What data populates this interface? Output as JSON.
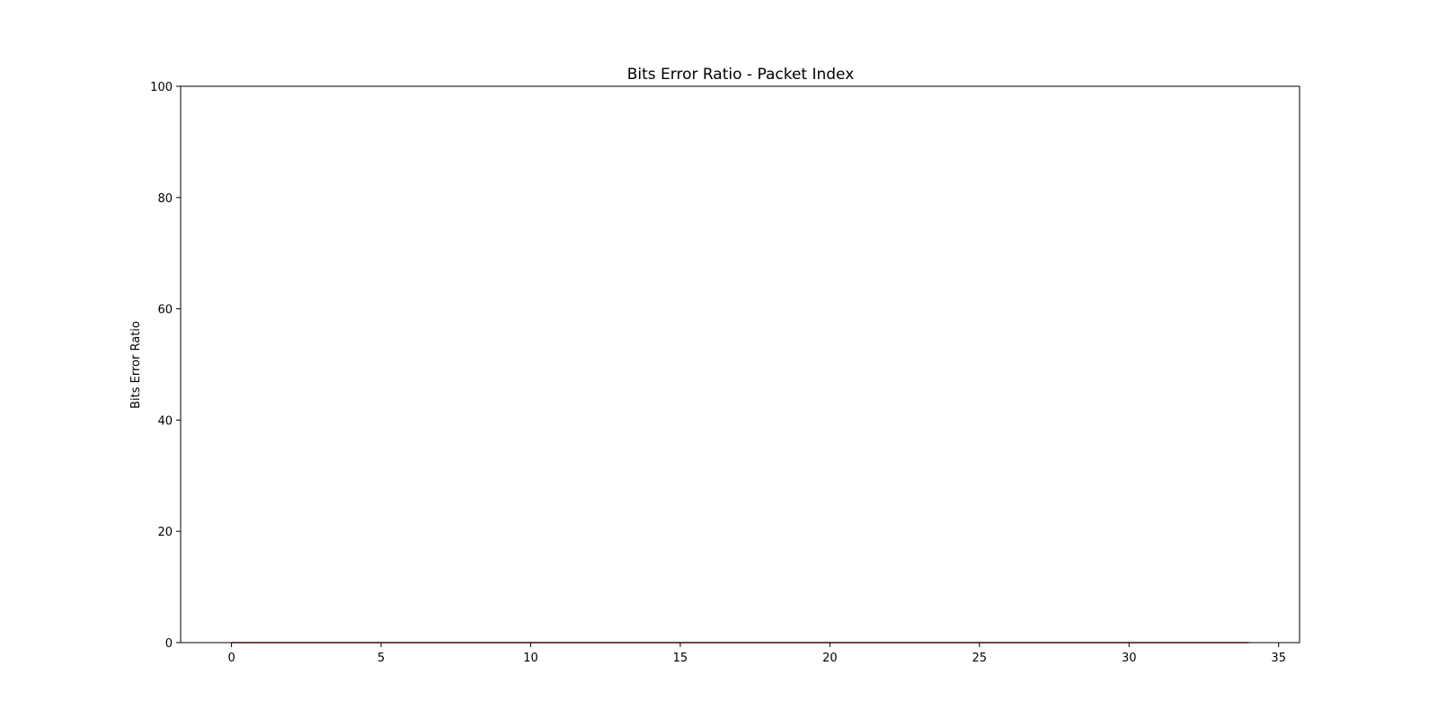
{
  "chart_data": {
    "type": "line",
    "title": "Bits Error Ratio - Packet Index",
    "xlabel": "",
    "ylabel": "Bits Error Ratio",
    "xlim": [
      -1.7,
      35.7
    ],
    "ylim": [
      0,
      100
    ],
    "x_ticks": [
      0,
      5,
      10,
      15,
      20,
      25,
      30,
      35
    ],
    "y_ticks": [
      0,
      20,
      40,
      60,
      80,
      100
    ],
    "grid": false,
    "legend": "none",
    "series": [
      {
        "color": "#b22222",
        "x": [
          0,
          1,
          2,
          3,
          4,
          5,
          6,
          7,
          8,
          9,
          10,
          11,
          12,
          13,
          14,
          15,
          16,
          17,
          18,
          19,
          20,
          21,
          22,
          23,
          24,
          25,
          26,
          27,
          28,
          29,
          30,
          31,
          32,
          33,
          34
        ],
        "values": [
          0,
          0,
          0,
          0,
          0,
          0,
          0,
          0,
          0,
          0,
          0,
          0,
          0,
          0,
          0,
          0,
          0,
          0,
          0,
          0,
          0,
          0,
          0,
          0,
          0,
          0,
          0,
          0,
          0,
          0,
          0,
          0,
          0,
          0,
          0
        ]
      }
    ]
  }
}
